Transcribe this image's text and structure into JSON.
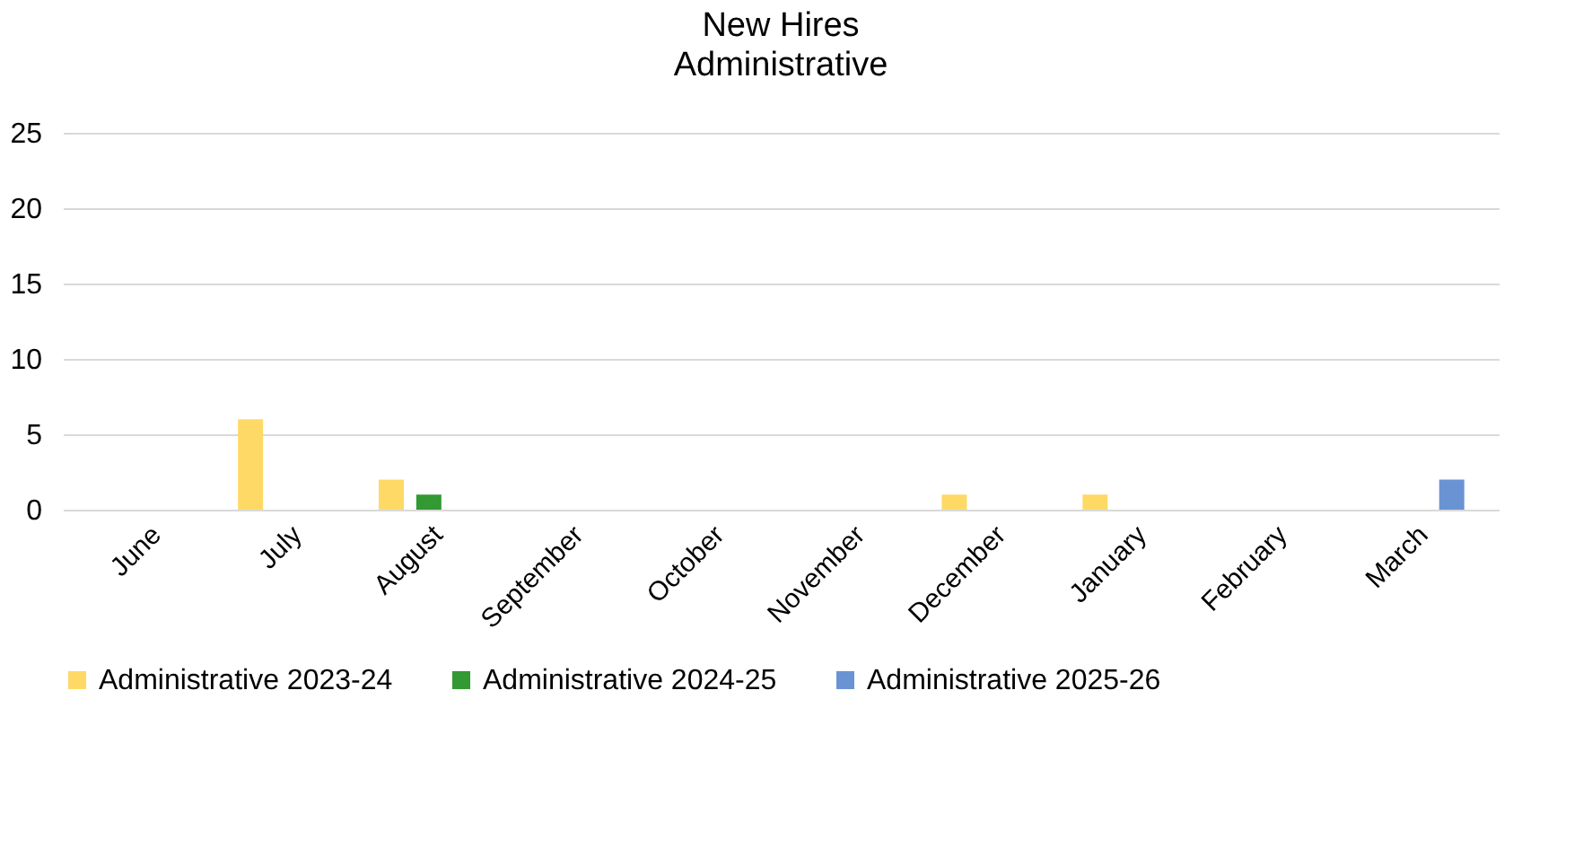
{
  "chart_data": {
    "type": "bar",
    "title": "New Hires",
    "subtitle": "Administrative",
    "categories": [
      "June",
      "July",
      "August",
      "September",
      "October",
      "November",
      "December",
      "January",
      "February",
      "March"
    ],
    "series": [
      {
        "name": "Administrative 2023-24",
        "color": "#ffd966",
        "values": [
          0,
          6,
          2,
          0,
          0,
          0,
          1,
          1,
          0,
          0
        ]
      },
      {
        "name": "Administrative 2024-25",
        "color": "#339933",
        "values": [
          0,
          0,
          1,
          0,
          0,
          0,
          0,
          0,
          0,
          0
        ]
      },
      {
        "name": "Administrative 2025-26",
        "color": "#6a93d4",
        "values": [
          0,
          0,
          0,
          0,
          0,
          0,
          0,
          0,
          0,
          2
        ]
      }
    ],
    "ylim": [
      0,
      25
    ],
    "yticks": [
      0,
      5,
      10,
      15,
      20,
      25
    ],
    "grid": "y",
    "legend": "bottom"
  }
}
